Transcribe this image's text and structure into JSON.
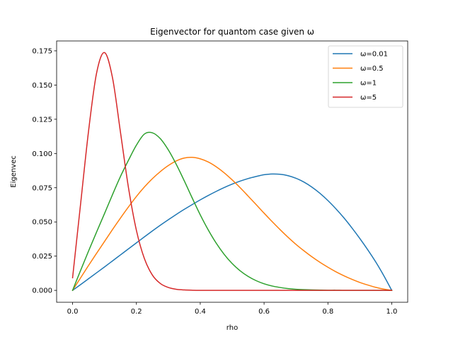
{
  "chart_data": {
    "type": "line",
    "title": "Eigenvector for quantom case given ω",
    "xlabel": "rho",
    "ylabel": "Eigenvec",
    "xlim": [
      -0.05,
      1.05
    ],
    "ylim": [
      -0.0087,
      0.1822
    ],
    "xticks": [
      0.0,
      0.2,
      0.4,
      0.6,
      0.8,
      1.0
    ],
    "xtick_labels": [
      "0.0",
      "0.2",
      "0.4",
      "0.6",
      "0.8",
      "1.0"
    ],
    "yticks": [
      0.0,
      0.025,
      0.05,
      0.075,
      0.1,
      0.125,
      0.15,
      0.175
    ],
    "ytick_labels": [
      "0.000",
      "0.025",
      "0.050",
      "0.075",
      "0.100",
      "0.125",
      "0.150",
      "0.175"
    ],
    "grid": false,
    "legend_position": "top-right",
    "x": [
      0.0,
      0.025,
      0.05,
      0.075,
      0.1,
      0.125,
      0.15,
      0.175,
      0.2,
      0.225,
      0.25,
      0.275,
      0.3,
      0.325,
      0.35,
      0.375,
      0.4,
      0.425,
      0.45,
      0.475,
      0.5,
      0.525,
      0.55,
      0.575,
      0.6,
      0.625,
      0.65,
      0.675,
      0.7,
      0.725,
      0.75,
      0.775,
      0.8,
      0.825,
      0.85,
      0.875,
      0.9,
      0.925,
      0.95,
      0.975,
      1.0
    ],
    "series": [
      {
        "name": "ω=0.01",
        "color": "#1f77b4",
        "values": [
          0.0,
          0.0042,
          0.0085,
          0.0128,
          0.0171,
          0.0215,
          0.0259,
          0.0303,
          0.0347,
          0.0391,
          0.0434,
          0.0476,
          0.0516,
          0.0555,
          0.0592,
          0.0627,
          0.0661,
          0.0693,
          0.0723,
          0.0751,
          0.0776,
          0.0798,
          0.0817,
          0.0832,
          0.0845,
          0.085,
          0.0848,
          0.0838,
          0.0819,
          0.0791,
          0.0754,
          0.0709,
          0.0656,
          0.0596,
          0.053,
          0.0457,
          0.0379,
          0.0296,
          0.0207,
          0.0108,
          0.0
        ]
      },
      {
        "name": "ω=0.5",
        "color": "#ff7f0e",
        "values": [
          0.0,
          0.0091,
          0.0182,
          0.027,
          0.0357,
          0.0444,
          0.0528,
          0.0609,
          0.0686,
          0.0755,
          0.0816,
          0.0868,
          0.0912,
          0.0946,
          0.0967,
          0.0972,
          0.0961,
          0.0938,
          0.0903,
          0.0859,
          0.0807,
          0.075,
          0.0689,
          0.0627,
          0.0564,
          0.0503,
          0.0444,
          0.0388,
          0.0336,
          0.0289,
          0.0245,
          0.0205,
          0.0169,
          0.0136,
          0.0107,
          0.0081,
          0.0058,
          0.0039,
          0.0022,
          0.0009,
          0.0
        ]
      },
      {
        "name": "ω=1",
        "color": "#2ca02c",
        "values": [
          0.0,
          0.0145,
          0.0287,
          0.0425,
          0.0561,
          0.0699,
          0.0832,
          0.095,
          0.1061,
          0.1142,
          0.1151,
          0.1108,
          0.1026,
          0.092,
          0.08,
          0.0674,
          0.0552,
          0.0442,
          0.0345,
          0.0263,
          0.0196,
          0.0143,
          0.0102,
          0.0071,
          0.0048,
          0.0032,
          0.0021,
          0.0013,
          0.0008,
          0.0005,
          0.0003,
          0.0002,
          0.0001,
          0.0001,
          0.0,
          0.0,
          0.0,
          0.0,
          0.0,
          0.0,
          0.0
        ]
      },
      {
        "name": "ω=5",
        "color": "#d62728",
        "values": [
          0.0092,
          0.0629,
          0.1163,
          0.1585,
          0.1737,
          0.1554,
          0.1156,
          0.0752,
          0.0438,
          0.0232,
          0.0112,
          0.005,
          0.0021,
          0.0008,
          0.0003,
          0.0001,
          0.0,
          0.0,
          0.0,
          0.0,
          0.0,
          0.0,
          0.0,
          0.0,
          0.0,
          0.0,
          0.0,
          0.0,
          0.0,
          0.0,
          0.0,
          0.0,
          0.0,
          0.0,
          0.0,
          0.0,
          0.0,
          0.0,
          0.0,
          0.0,
          0.0
        ]
      }
    ]
  }
}
